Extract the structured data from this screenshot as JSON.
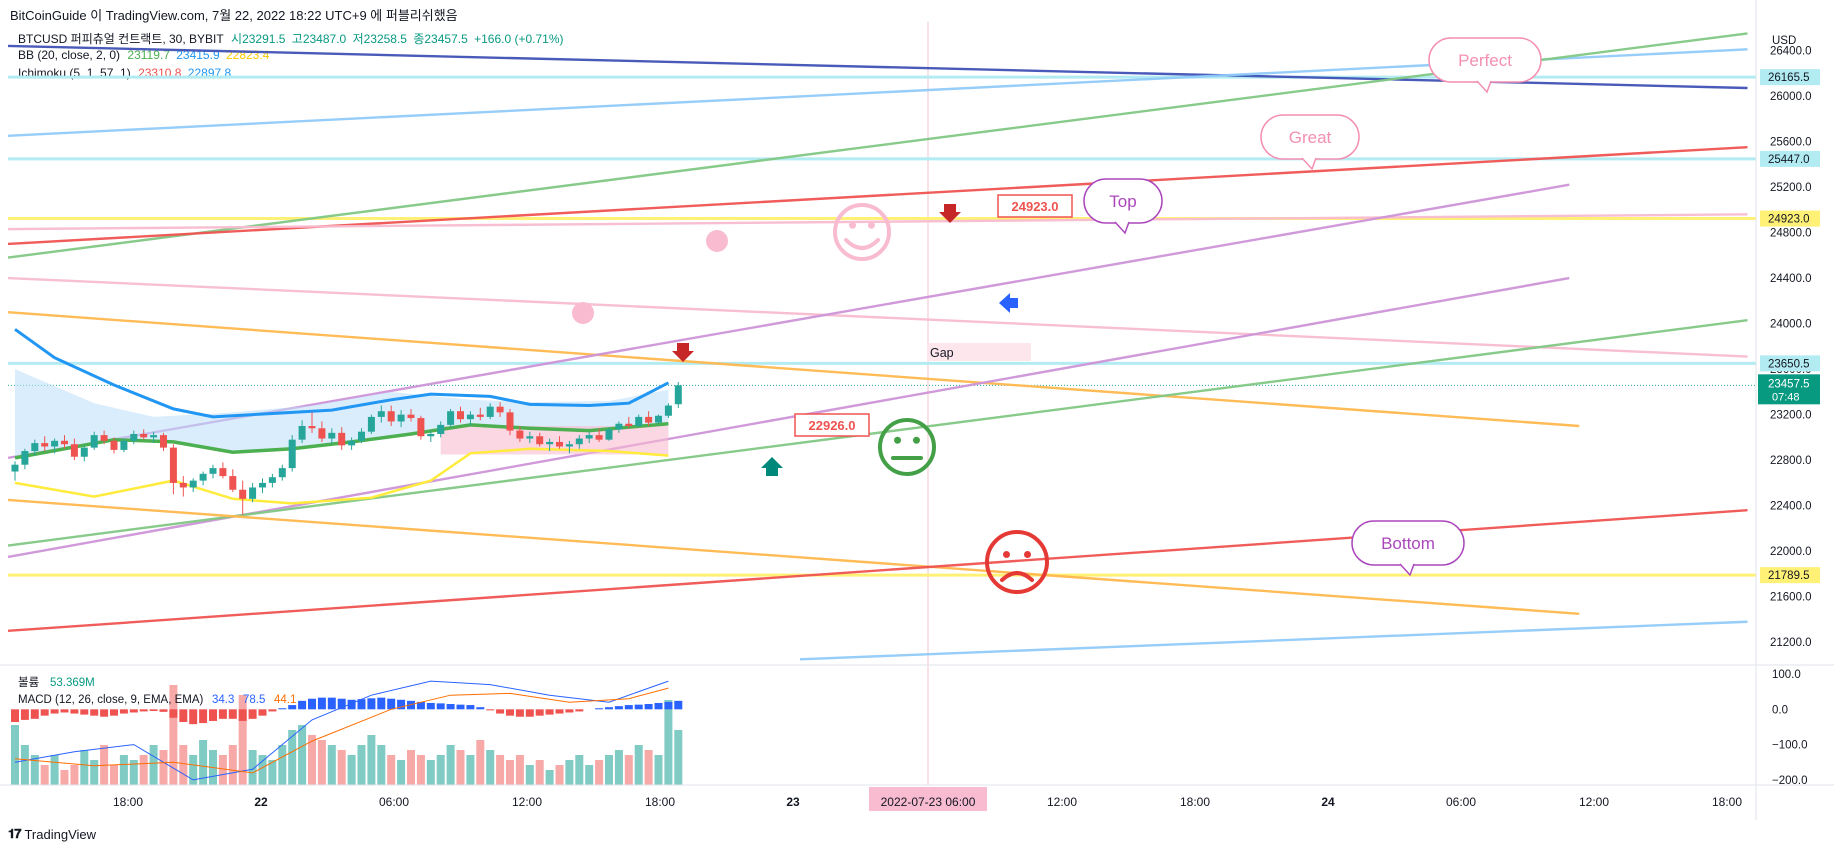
{
  "header": {
    "caption": "BitCoinGuide 이 TradingView.com, 7월 22, 2022 18:22 UTC+9 에 퍼블리쉬했음",
    "symbol_line": {
      "name": "BTCUSD 퍼피츄얼 컨트랙트, 30, BYBIT",
      "open": "시23291.5",
      "high": "고23487.0",
      "low": "저23258.5",
      "close": "종23457.5",
      "change": "+166.0 (+0.71%)"
    },
    "bb_line": {
      "name": "BB (20, close, 2, 0)",
      "v1": "23119.7",
      "v2": "23415.9",
      "v3": "22823.4"
    },
    "ichimoku_line": {
      "name": "Ichimoku (5, 1, 57, 1)",
      "v1": "23310.8",
      "v2": "22897.8"
    }
  },
  "colors": {
    "up": "#26a69a",
    "down": "#ef5350",
    "bb_mid": "#4caf50",
    "ich_blue": "#2196f3",
    "ich_yellow": "#ffeb3b",
    "vol_up": "#80cbc4",
    "vol_down": "#f7a9a8",
    "macd_up": "#2962ff",
    "macd_down": "#ef5350"
  },
  "chart_data": {
    "type": "candlestick",
    "currency": "USD",
    "price_axis": {
      "ticks": [
        26400,
        26000,
        25600,
        25200,
        24800,
        24400,
        24000,
        23600,
        23200,
        22800,
        22400,
        22000,
        21600,
        21200
      ],
      "tick_labels": [
        "26400.0",
        "26000.0",
        "25600.0",
        "25200.0",
        "24800.0",
        "24400.0",
        "24000.0",
        "23600.0",
        "23200.0",
        "22800.0",
        "22400.0",
        "22000.0",
        "21600.0",
        "21200.0"
      ],
      "ylim": [
        21000,
        26650
      ]
    },
    "level_labels": [
      {
        "value": 26165.5,
        "text": "26165.5",
        "bg": "#b2ebf2"
      },
      {
        "value": 25447.0,
        "text": "25447.0",
        "bg": "#b2ebf2"
      },
      {
        "value": 24923.0,
        "text": "24923.0",
        "bg": "#fff176"
      },
      {
        "value": 23650.5,
        "text": "23650.5",
        "bg": "#b2ebf2"
      },
      {
        "value": 21789.5,
        "text": "21789.5",
        "bg": "#fff176"
      }
    ],
    "last_price": {
      "value": 23457.5,
      "text": "23457.5",
      "countdown": "07:48"
    },
    "time_axis": [
      "18:00",
      "22",
      "06:00",
      "12:00",
      "18:00",
      "23",
      "06:00",
      "12:00",
      "18:00",
      "24",
      "06:00",
      "12:00",
      "18:00"
    ],
    "crosshair_label": "2022-07-23 06:00",
    "candles": [
      {
        "o": 22700,
        "h": 22790,
        "l": 22620,
        "c": 22760
      },
      {
        "o": 22760,
        "h": 22900,
        "l": 22720,
        "c": 22880
      },
      {
        "o": 22880,
        "h": 22980,
        "l": 22840,
        "c": 22950
      },
      {
        "o": 22950,
        "h": 23010,
        "l": 22880,
        "c": 22920
      },
      {
        "o": 22920,
        "h": 22990,
        "l": 22860,
        "c": 22970
      },
      {
        "o": 22970,
        "h": 23020,
        "l": 22900,
        "c": 22940
      },
      {
        "o": 22940,
        "h": 22990,
        "l": 22800,
        "c": 22830
      },
      {
        "o": 22830,
        "h": 22930,
        "l": 22790,
        "c": 22910
      },
      {
        "o": 22910,
        "h": 23050,
        "l": 22890,
        "c": 23020
      },
      {
        "o": 23020,
        "h": 23060,
        "l": 22940,
        "c": 22970
      },
      {
        "o": 22970,
        "h": 23000,
        "l": 22860,
        "c": 22890
      },
      {
        "o": 22890,
        "h": 22990,
        "l": 22870,
        "c": 22970
      },
      {
        "o": 22970,
        "h": 23060,
        "l": 22940,
        "c": 23030
      },
      {
        "o": 23030,
        "h": 23070,
        "l": 22980,
        "c": 23000
      },
      {
        "o": 23000,
        "h": 23050,
        "l": 22950,
        "c": 23020
      },
      {
        "o": 23020,
        "h": 23040,
        "l": 22880,
        "c": 22910
      },
      {
        "o": 22910,
        "h": 22940,
        "l": 22500,
        "c": 22600
      },
      {
        "o": 22600,
        "h": 22660,
        "l": 22480,
        "c": 22560
      },
      {
        "o": 22560,
        "h": 22640,
        "l": 22520,
        "c": 22620
      },
      {
        "o": 22620,
        "h": 22700,
        "l": 22580,
        "c": 22680
      },
      {
        "o": 22680,
        "h": 22760,
        "l": 22640,
        "c": 22730
      },
      {
        "o": 22730,
        "h": 22780,
        "l": 22640,
        "c": 22660
      },
      {
        "o": 22660,
        "h": 22720,
        "l": 22520,
        "c": 22540
      },
      {
        "o": 22540,
        "h": 22620,
        "l": 22320,
        "c": 22460
      },
      {
        "o": 22460,
        "h": 22600,
        "l": 22430,
        "c": 22560
      },
      {
        "o": 22560,
        "h": 22640,
        "l": 22510,
        "c": 22600
      },
      {
        "o": 22600,
        "h": 22680,
        "l": 22560,
        "c": 22650
      },
      {
        "o": 22650,
        "h": 22760,
        "l": 22620,
        "c": 22730
      },
      {
        "o": 22730,
        "h": 23020,
        "l": 22700,
        "c": 22980
      },
      {
        "o": 22980,
        "h": 23150,
        "l": 22950,
        "c": 23100
      },
      {
        "o": 23100,
        "h": 23220,
        "l": 23040,
        "c": 23080
      },
      {
        "o": 23080,
        "h": 23140,
        "l": 22960,
        "c": 22990
      },
      {
        "o": 22990,
        "h": 23080,
        "l": 22940,
        "c": 23040
      },
      {
        "o": 23040,
        "h": 23090,
        "l": 22890,
        "c": 22930
      },
      {
        "o": 22930,
        "h": 23000,
        "l": 22890,
        "c": 22970
      },
      {
        "o": 22970,
        "h": 23080,
        "l": 22950,
        "c": 23050
      },
      {
        "o": 23050,
        "h": 23200,
        "l": 23030,
        "c": 23180
      },
      {
        "o": 23180,
        "h": 23280,
        "l": 23130,
        "c": 23230
      },
      {
        "o": 23230,
        "h": 23280,
        "l": 23100,
        "c": 23140
      },
      {
        "o": 23140,
        "h": 23240,
        "l": 23090,
        "c": 23200
      },
      {
        "o": 23200,
        "h": 23250,
        "l": 23140,
        "c": 23170
      },
      {
        "o": 23170,
        "h": 23190,
        "l": 22980,
        "c": 23010
      },
      {
        "o": 23010,
        "h": 23060,
        "l": 22960,
        "c": 23030
      },
      {
        "o": 23030,
        "h": 23140,
        "l": 23000,
        "c": 23110
      },
      {
        "o": 23110,
        "h": 23250,
        "l": 23090,
        "c": 23230
      },
      {
        "o": 23230,
        "h": 23270,
        "l": 23130,
        "c": 23160
      },
      {
        "o": 23160,
        "h": 23230,
        "l": 23100,
        "c": 23200
      },
      {
        "o": 23200,
        "h": 23260,
        "l": 23150,
        "c": 23180
      },
      {
        "o": 23180,
        "h": 23300,
        "l": 23160,
        "c": 23270
      },
      {
        "o": 23270,
        "h": 23310,
        "l": 23180,
        "c": 23220
      },
      {
        "o": 23220,
        "h": 23250,
        "l": 23020,
        "c": 23060
      },
      {
        "o": 23060,
        "h": 23100,
        "l": 22960,
        "c": 22990
      },
      {
        "o": 22990,
        "h": 23050,
        "l": 22950,
        "c": 23010
      },
      {
        "o": 23010,
        "h": 23040,
        "l": 22920,
        "c": 22940
      },
      {
        "o": 22940,
        "h": 22990,
        "l": 22880,
        "c": 22960
      },
      {
        "o": 22960,
        "h": 23010,
        "l": 22900,
        "c": 22920
      },
      {
        "o": 22920,
        "h": 22970,
        "l": 22860,
        "c": 22940
      },
      {
        "o": 22940,
        "h": 23020,
        "l": 22900,
        "c": 22990
      },
      {
        "o": 22990,
        "h": 23050,
        "l": 22950,
        "c": 23020
      },
      {
        "o": 23020,
        "h": 23080,
        "l": 22960,
        "c": 22980
      },
      {
        "o": 22980,
        "h": 23090,
        "l": 22970,
        "c": 23070
      },
      {
        "o": 23070,
        "h": 23140,
        "l": 23040,
        "c": 23120
      },
      {
        "o": 23120,
        "h": 23180,
        "l": 23080,
        "c": 23100
      },
      {
        "o": 23100,
        "h": 23200,
        "l": 23090,
        "c": 23180
      },
      {
        "o": 23180,
        "h": 23230,
        "l": 23100,
        "c": 23130
      },
      {
        "o": 23130,
        "h": 23200,
        "l": 23110,
        "c": 23190
      },
      {
        "o": 23190,
        "h": 23300,
        "l": 23170,
        "c": 23280
      },
      {
        "o": 23291.5,
        "h": 23487,
        "l": 23258.5,
        "c": 23457.5
      }
    ],
    "bb_mid": [
      [
        0,
        22820
      ],
      [
        10,
        22980
      ],
      [
        16,
        22960
      ],
      [
        22,
        22870
      ],
      [
        28,
        22900
      ],
      [
        34,
        22960
      ],
      [
        40,
        23030
      ],
      [
        46,
        23110
      ],
      [
        52,
        23080
      ],
      [
        58,
        23060
      ],
      [
        66,
        23120
      ]
    ],
    "bb_upper_line": [
      [
        0,
        23600
      ],
      [
        8,
        23300
      ],
      [
        14,
        23180
      ],
      [
        22,
        23220
      ],
      [
        30,
        23280
      ],
      [
        38,
        23400
      ],
      [
        46,
        23330
      ],
      [
        52,
        23310
      ],
      [
        60,
        23320
      ],
      [
        66,
        23420
      ]
    ],
    "ichimoku_fast": [
      [
        0,
        23950
      ],
      [
        4,
        23700
      ],
      [
        10,
        23460
      ],
      [
        16,
        23250
      ],
      [
        20,
        23180
      ],
      [
        26,
        23210
      ],
      [
        32,
        23240
      ],
      [
        38,
        23330
      ],
      [
        42,
        23380
      ],
      [
        48,
        23360
      ],
      [
        52,
        23290
      ],
      [
        58,
        23280
      ],
      [
        62,
        23300
      ],
      [
        66,
        23480
      ]
    ],
    "ichimoku_slow": [
      [
        0,
        22600
      ],
      [
        8,
        22480
      ],
      [
        16,
        22620
      ],
      [
        22,
        22460
      ],
      [
        28,
        22420
      ],
      [
        36,
        22470
      ],
      [
        42,
        22620
      ],
      [
        46,
        22860
      ],
      [
        52,
        22900
      ],
      [
        60,
        22880
      ],
      [
        66,
        22840
      ]
    ],
    "trend_lines": [
      {
        "color": "#3f51b5",
        "x1": 0,
        "y1": 26440,
        "x2": 175,
        "y2": 26070
      },
      {
        "color": "#90caf9",
        "x1": 0,
        "y1": 25650,
        "x2": 175,
        "y2": 26410
      },
      {
        "color": "#81c784",
        "x1": 0,
        "y1": 24580,
        "x2": 175,
        "y2": 26550
      },
      {
        "color": "#ef5350",
        "x1": 0,
        "y1": 24700,
        "x2": 175,
        "y2": 25550
      },
      {
        "color": "#f8bbd0",
        "x1": 0,
        "y1": 24830,
        "x2": 175,
        "y2": 24960
      },
      {
        "color": "#f8bbd0",
        "x1": 0,
        "y1": 24400,
        "x2": 175,
        "y2": 23710
      },
      {
        "color": "#ffb74d",
        "x1": 0,
        "y1": 24100,
        "x2": 158,
        "y2": 23100
      },
      {
        "color": "#ce93d8",
        "x1": 0,
        "y1": 22820,
        "x2": 157,
        "y2": 25220
      },
      {
        "color": "#ce93d8",
        "x1": 0,
        "y1": 21950,
        "x2": 157,
        "y2": 24400
      },
      {
        "color": "#81c784",
        "x1": 0,
        "y1": 22050,
        "x2": 175,
        "y2": 24030
      },
      {
        "color": "#ffb74d",
        "x1": 0,
        "y1": 22450,
        "x2": 158,
        "y2": 21450
      },
      {
        "color": "#ef5350",
        "x1": 0,
        "y1": 21300,
        "x2": 175,
        "y2": 22360
      },
      {
        "color": "#90caf9",
        "x1": 80,
        "y1": 21050,
        "x2": 175,
        "y2": 21380
      }
    ],
    "callouts": [
      {
        "text": "Perfect"
      },
      {
        "text": "Great"
      },
      {
        "text": "Top"
      },
      {
        "text": "Bottom"
      }
    ],
    "price_tags": [
      {
        "text": "24923.0"
      },
      {
        "text": "22926.0"
      }
    ],
    "gap_label": "Gap",
    "volume": {
      "name": "볼륨",
      "value": "53.369M",
      "values": [
        60,
        40,
        30,
        20,
        30,
        15,
        20,
        35,
        25,
        40,
        20,
        30,
        25,
        30,
        40,
        35,
        100,
        40,
        30,
        45,
        35,
        30,
        40,
        90,
        35,
        30,
        25,
        40,
        55,
        60,
        50,
        45,
        40,
        35,
        30,
        40,
        50,
        40,
        30,
        25,
        35,
        30,
        25,
        30,
        40,
        35,
        30,
        45,
        35,
        30,
        25,
        30,
        20,
        25,
        15,
        20,
        25,
        30,
        20,
        25,
        30,
        35,
        30,
        40,
        35,
        30,
        85,
        55
      ]
    },
    "macd": {
      "name": "MACD (12, 26, close, 9, EMA, EMA)",
      "v1": "34.3",
      "v2": "78.5",
      "v3": "44.1",
      "ticks": [
        100,
        0,
        -100,
        -200
      ],
      "tick_labels": [
        "100.0",
        "0.0",
        "−100.0",
        "−200.0"
      ],
      "hist": [
        -60,
        -50,
        -45,
        -30,
        -20,
        -15,
        -20,
        -25,
        -30,
        -35,
        -30,
        -20,
        -15,
        -10,
        -8,
        -12,
        -40,
        -60,
        -70,
        -65,
        -55,
        -45,
        -45,
        -55,
        -45,
        -30,
        -10,
        5,
        20,
        40,
        50,
        55,
        55,
        50,
        45,
        48,
        52,
        55,
        50,
        45,
        40,
        35,
        30,
        28,
        25,
        22,
        20,
        10,
        -5,
        -20,
        -30,
        -35,
        -35,
        -30,
        -25,
        -20,
        -15,
        -10,
        0,
        5,
        10,
        15,
        20,
        22,
        25,
        30,
        35,
        40
      ],
      "macd_line": [
        [
          0,
          -150
        ],
        [
          6,
          -120
        ],
        [
          12,
          -100
        ],
        [
          18,
          -200
        ],
        [
          24,
          -170
        ],
        [
          30,
          -30
        ],
        [
          36,
          40
        ],
        [
          42,
          80
        ],
        [
          48,
          70
        ],
        [
          54,
          40
        ],
        [
          60,
          20
        ],
        [
          66,
          80
        ]
      ],
      "signal_line": [
        [
          0,
          -140
        ],
        [
          8,
          -160
        ],
        [
          16,
          -150
        ],
        [
          24,
          -180
        ],
        [
          30,
          -90
        ],
        [
          38,
          0
        ],
        [
          44,
          40
        ],
        [
          50,
          45
        ],
        [
          56,
          20
        ],
        [
          62,
          30
        ],
        [
          66,
          60
        ]
      ]
    }
  }
}
